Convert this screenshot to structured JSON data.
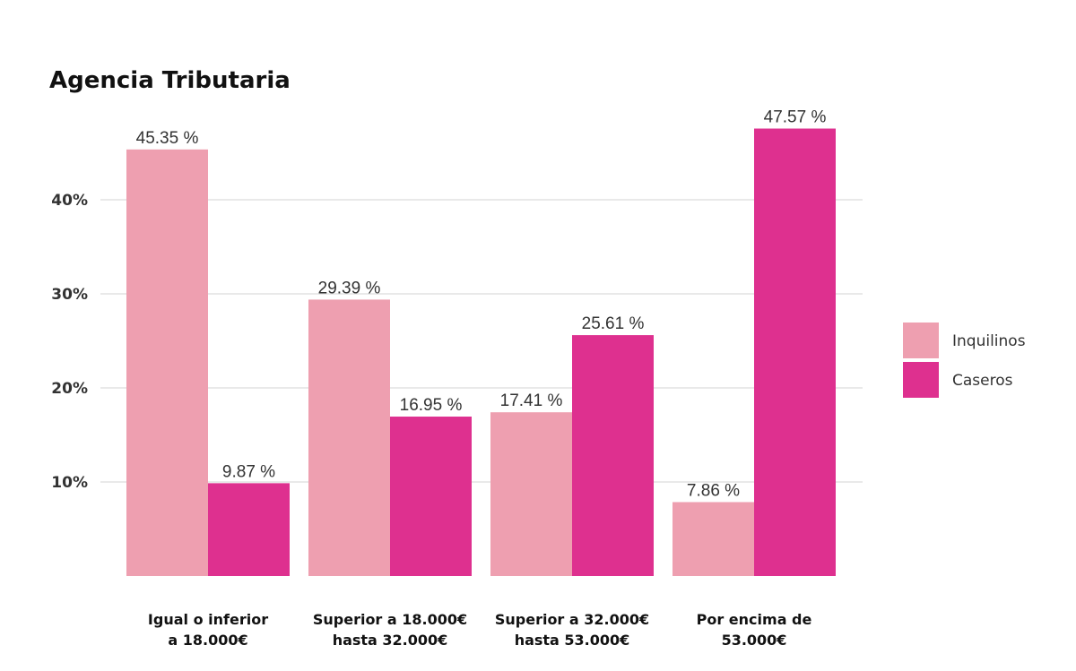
{
  "chart_data": {
    "type": "bar",
    "title": "Agencia Tributaria",
    "xlabel": "",
    "ylabel": "",
    "categories": [
      [
        "Igual o inferior",
        "a 18.000€"
      ],
      [
        "Superior a 18.000€",
        "hasta 32.000€"
      ],
      [
        "Superior a 32.000€",
        "hasta 53.000€"
      ],
      [
        "Por encima de",
        "53.000€"
      ]
    ],
    "series": [
      {
        "name": "Inquilinos",
        "color": "#ee9fb0",
        "values": [
          45.35,
          29.39,
          17.41,
          7.86
        ],
        "labels": [
          "45.35 %",
          "29.39 %",
          "17.41 %",
          "7.86 %"
        ]
      },
      {
        "name": "Caseros",
        "color": "#de308f",
        "values": [
          9.87,
          16.95,
          25.61,
          47.57
        ],
        "labels": [
          "9.87 %",
          "16.95 %",
          "25.61 %",
          "47.57 %"
        ]
      }
    ],
    "yticks": [
      10,
      20,
      30,
      40
    ],
    "ytick_labels": [
      "10%",
      "20%",
      "30%",
      "40%"
    ],
    "ylim": [
      0,
      50
    ],
    "grid": true,
    "legend_position": "right"
  }
}
